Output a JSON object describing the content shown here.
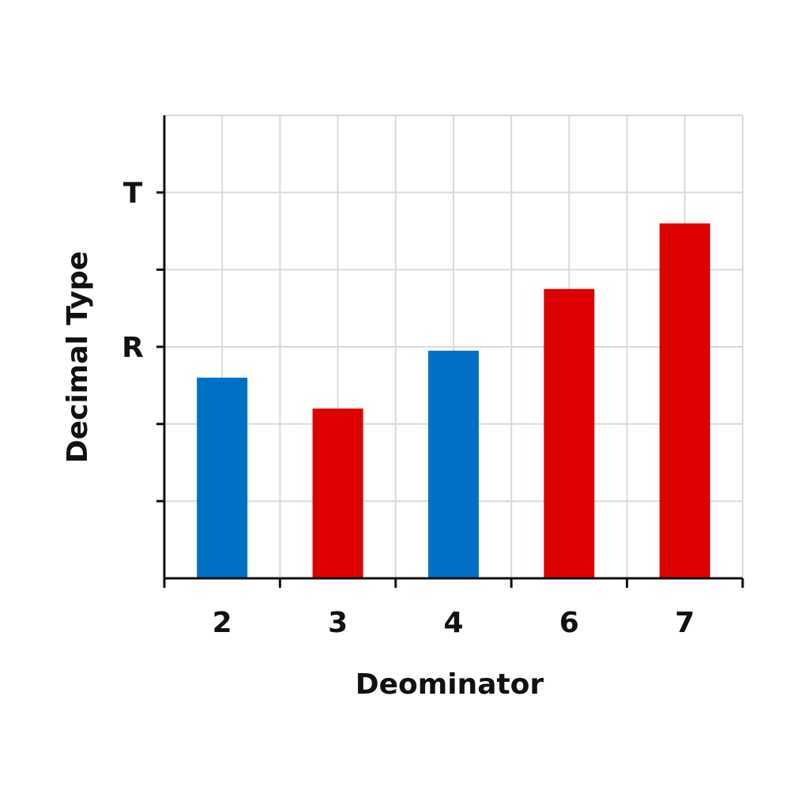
{
  "chart_data": {
    "type": "bar",
    "title": "",
    "xlabel": "Deominator",
    "ylabel": "Decimal Type",
    "categories": [
      "2",
      "3",
      "4",
      "6",
      "7"
    ],
    "values": [
      2.6,
      2.2,
      2.95,
      3.75,
      4.6
    ],
    "bar_colors": [
      "#0070c4",
      "#dc0000",
      "#0070c4",
      "#dc0000",
      "#dc0000"
    ],
    "ylim": [
      0,
      6
    ],
    "y_ticks": [
      {
        "value": 1,
        "label": ""
      },
      {
        "value": 2,
        "label": ""
      },
      {
        "value": 3,
        "label": "R"
      },
      {
        "value": 4,
        "label": ""
      },
      {
        "value": 5,
        "label": "T"
      }
    ],
    "grid": true,
    "legend": "none"
  }
}
